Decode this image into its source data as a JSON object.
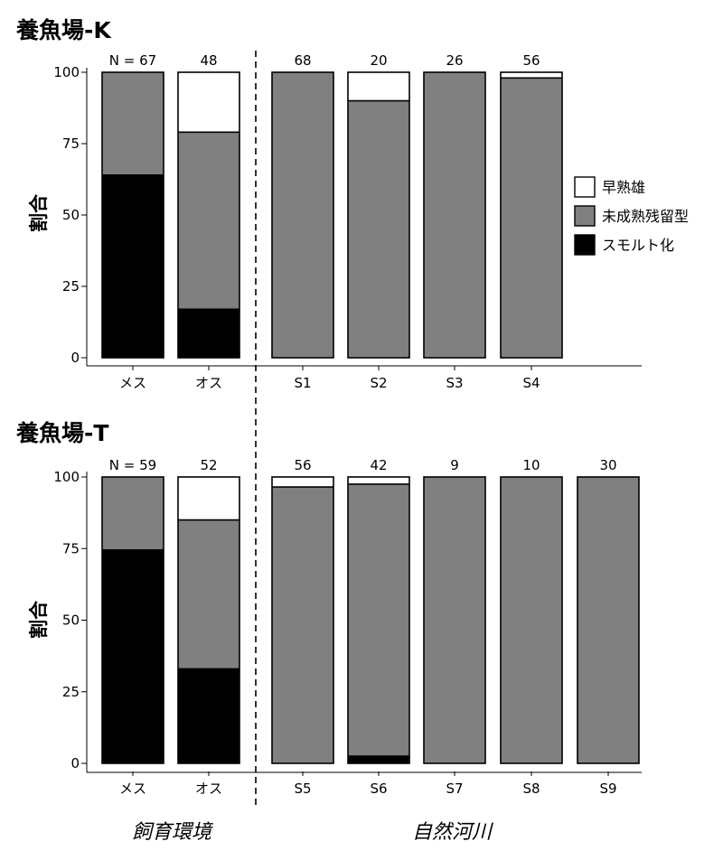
{
  "chart_data": [
    {
      "type": "bar",
      "stacked": true,
      "title": "養魚場-K",
      "ylabel": "割合",
      "ylim": [
        0,
        100
      ],
      "yticks": [
        "0",
        "25",
        "50",
        "75",
        "100"
      ],
      "categories": [
        "メス",
        "オス",
        "S1",
        "S2",
        "S3",
        "S4"
      ],
      "n_labels": [
        "N = 67",
        "48",
        "68",
        "20",
        "26",
        "56"
      ],
      "series": [
        {
          "name": "スモルト化",
          "color": "#000000",
          "values": [
            64,
            17,
            0,
            0,
            0,
            0
          ]
        },
        {
          "name": "未成熟残留型",
          "color": "#808080",
          "values": [
            36,
            62,
            100,
            90,
            100,
            98
          ]
        },
        {
          "name": "早熟雄",
          "color": "#ffffff",
          "values": [
            0,
            21,
            0,
            10,
            0,
            2
          ]
        }
      ]
    },
    {
      "type": "bar",
      "stacked": true,
      "title": "養魚場-T",
      "ylabel": "割合",
      "ylim": [
        0,
        100
      ],
      "yticks": [
        "0",
        "25",
        "50",
        "75",
        "100"
      ],
      "categories": [
        "メス",
        "オス",
        "S5",
        "S6",
        "S7",
        "S8",
        "S9"
      ],
      "n_labels": [
        "N = 59",
        "52",
        "56",
        "42",
        "9",
        "10",
        "30"
      ],
      "series": [
        {
          "name": "スモルト化",
          "color": "#000000",
          "values": [
            74.5,
            33,
            0,
            2.5,
            0,
            0,
            0
          ]
        },
        {
          "name": "未成熟残留型",
          "color": "#808080",
          "values": [
            25.5,
            52,
            96.5,
            95,
            100,
            100,
            100
          ]
        },
        {
          "name": "早熟雄",
          "color": "#ffffff",
          "values": [
            0,
            15,
            3.5,
            2.5,
            0,
            0,
            0
          ]
        }
      ]
    }
  ],
  "legend": {
    "position": "right",
    "items": [
      {
        "label": "早熟雄",
        "color": "#ffffff"
      },
      {
        "label": "未成熟残留型",
        "color": "#808080"
      },
      {
        "label": "スモルト化",
        "color": "#000000"
      }
    ]
  },
  "group_labels": {
    "left": "飼育環境",
    "right": "自然河川"
  }
}
